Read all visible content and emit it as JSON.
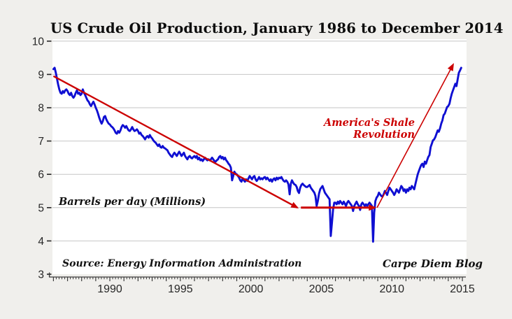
{
  "title": "US Crude Oil Production, January 1986 to December 2014",
  "annotations": {
    "shale_line1": "America's Shale",
    "shale_line2": "Revolution",
    "units_label": "Barrels per day (Millions)",
    "source": "Source: Energy Information Administration",
    "credit": "Carpe Diem Blog"
  },
  "colors": {
    "series_line": "#0f0fd2",
    "trend_arrow": "#cc0000",
    "gridline": "#c6c6c6",
    "axis": "#3c3c3c",
    "tick_text": "#262626",
    "plot_background": "#ffffff",
    "page_background": "#f0efec"
  },
  "chart_data": {
    "type": "line",
    "title": "US Crude Oil Production, January 1986 to December 2014",
    "xlabel": "",
    "ylabel": "Barrels per day (Millions)",
    "legend": "none",
    "grid": "horizontal",
    "x_axis": {
      "start_year": 1986,
      "end_year": 2015,
      "tick_labels": [
        "1990",
        "1995",
        "2000",
        "2005",
        "2010",
        "2015"
      ],
      "minor_divisions_per_year": 5
    },
    "y_axis": {
      "min": 3,
      "max": 10,
      "ticks": [
        10,
        9,
        8,
        7,
        6,
        5,
        4,
        3
      ],
      "gridline_values": [
        4,
        5,
        6,
        7,
        8,
        9,
        10
      ]
    },
    "series": [
      {
        "name": "US crude oil production (monthly)",
        "unit": "million barrels per day",
        "color": "#0f0fd2",
        "monthly_by_year": {
          "1986": [
            9.16,
            9.2,
            9.05,
            8.88,
            8.7,
            8.55,
            8.45,
            8.42,
            8.5,
            8.45,
            8.52,
            8.55
          ],
          "1987": [
            8.5,
            8.42,
            8.38,
            8.45,
            8.35,
            8.3,
            8.35,
            8.45,
            8.52,
            8.42,
            8.45,
            8.38
          ],
          "1988": [
            8.42,
            8.55,
            8.45,
            8.38,
            8.3,
            8.22,
            8.18,
            8.1,
            8.05,
            8.12,
            8.18,
            8.1
          ],
          "1989": [
            8.0,
            7.92,
            7.82,
            7.7,
            7.6,
            7.52,
            7.6,
            7.72,
            7.75,
            7.65,
            7.58,
            7.52
          ],
          "1990": [
            7.5,
            7.45,
            7.42,
            7.38,
            7.32,
            7.25,
            7.22,
            7.3,
            7.25,
            7.32,
            7.42,
            7.48
          ],
          "1991": [
            7.45,
            7.4,
            7.45,
            7.38,
            7.32,
            7.3,
            7.35,
            7.42,
            7.35,
            7.3,
            7.32,
            7.35
          ],
          "1992": [
            7.3,
            7.22,
            7.25,
            7.18,
            7.15,
            7.1,
            7.05,
            7.12,
            7.15,
            7.1,
            7.18,
            7.12
          ],
          "1993": [
            7.08,
            7.02,
            6.98,
            6.95,
            6.9,
            6.85,
            6.9,
            6.82,
            6.8,
            6.85,
            6.8,
            6.78
          ],
          "1994": [
            6.75,
            6.72,
            6.65,
            6.6,
            6.55,
            6.52,
            6.6,
            6.65,
            6.6,
            6.55,
            6.62,
            6.68
          ],
          "1995": [
            6.62,
            6.55,
            6.6,
            6.65,
            6.55,
            6.5,
            6.45,
            6.52,
            6.55,
            6.5,
            6.48,
            6.52
          ],
          "1996": [
            6.55,
            6.5,
            6.55,
            6.45,
            6.5,
            6.42,
            6.45,
            6.4,
            6.45,
            6.5,
            6.45,
            6.42
          ],
          "1997": [
            6.45,
            6.42,
            6.45,
            6.5,
            6.45,
            6.4,
            6.38,
            6.42,
            6.45,
            6.52,
            6.55,
            6.48
          ],
          "1998": [
            6.52,
            6.45,
            6.5,
            6.42,
            6.38,
            6.32,
            6.28,
            6.2,
            5.82,
            5.95,
            6.08,
            6.02
          ],
          "1999": [
            6.0,
            5.95,
            5.9,
            5.82,
            5.78,
            5.88,
            5.82,
            5.78,
            5.85,
            5.8,
            5.88,
            5.95
          ],
          "2000": [
            5.9,
            5.85,
            5.92,
            5.95,
            5.85,
            5.8,
            5.85,
            5.92,
            5.85,
            5.88,
            5.85,
            5.9
          ],
          "2001": [
            5.92,
            5.85,
            5.9,
            5.85,
            5.8,
            5.85,
            5.78,
            5.85,
            5.88,
            5.82,
            5.9,
            5.85
          ],
          "2002": [
            5.9,
            5.88,
            5.92,
            5.85,
            5.8,
            5.78,
            5.82,
            5.78,
            5.7,
            5.4,
            5.72,
            5.82
          ],
          "2003": [
            5.75,
            5.7,
            5.68,
            5.62,
            5.5,
            5.44,
            5.6,
            5.68,
            5.72,
            5.68,
            5.65,
            5.62
          ],
          "2004": [
            5.62,
            5.65,
            5.68,
            5.6,
            5.55,
            5.5,
            5.45,
            5.35,
            5.05,
            5.2,
            5.42,
            5.55
          ],
          "2005": [
            5.6,
            5.65,
            5.55,
            5.45,
            5.4,
            5.35,
            5.3,
            5.25,
            4.15,
            4.55,
            4.95,
            5.15
          ],
          "2006": [
            5.15,
            5.1,
            5.18,
            5.12,
            5.2,
            5.15,
            5.1,
            5.18,
            5.12,
            5.05,
            5.15,
            5.2
          ],
          "2007": [
            5.15,
            5.1,
            5.05,
            4.9,
            5.05,
            5.12,
            5.18,
            5.1,
            5.05,
            4.93,
            5.1,
            5.15
          ],
          "2008": [
            5.1,
            5.05,
            5.1,
            5.05,
            5.1,
            5.15,
            5.1,
            5.05,
            3.98,
            4.85,
            5.2,
            5.3
          ],
          "2009": [
            5.35,
            5.45,
            5.4,
            5.35,
            5.33,
            5.4,
            5.5,
            5.45,
            5.38,
            5.5,
            5.6,
            5.55
          ],
          "2010": [
            5.5,
            5.45,
            5.38,
            5.45,
            5.55,
            5.5,
            5.45,
            5.55,
            5.65,
            5.6,
            5.5,
            5.55
          ],
          "2011": [
            5.45,
            5.55,
            5.5,
            5.6,
            5.55,
            5.65,
            5.6,
            5.55,
            5.7,
            5.85,
            6.0,
            6.1
          ],
          "2012": [
            6.2,
            6.28,
            6.32,
            6.22,
            6.38,
            6.32,
            6.42,
            6.52,
            6.58,
            6.82,
            6.92,
            7.02
          ],
          "2013": [
            7.05,
            7.12,
            7.22,
            7.32,
            7.28,
            7.38,
            7.52,
            7.62,
            7.78,
            7.82,
            7.92,
            8.02
          ],
          "2014": [
            8.05,
            8.12,
            8.28,
            8.42,
            8.52,
            8.62,
            8.72,
            8.65,
            8.85,
            9.05,
            9.12,
            9.2
          ]
        }
      }
    ],
    "trend_arrows": [
      {
        "name": "decline-trend",
        "from": [
          1986.0,
          8.95
        ],
        "to": [
          2003.3,
          5.0
        ]
      },
      {
        "name": "flat-trend",
        "from": [
          2003.55,
          5.0
        ],
        "to": [
          2008.8,
          5.0
        ]
      },
      {
        "name": "shale-rise-trend",
        "from": [
          2008.95,
          5.0
        ],
        "to": [
          2014.35,
          9.3
        ]
      }
    ]
  }
}
